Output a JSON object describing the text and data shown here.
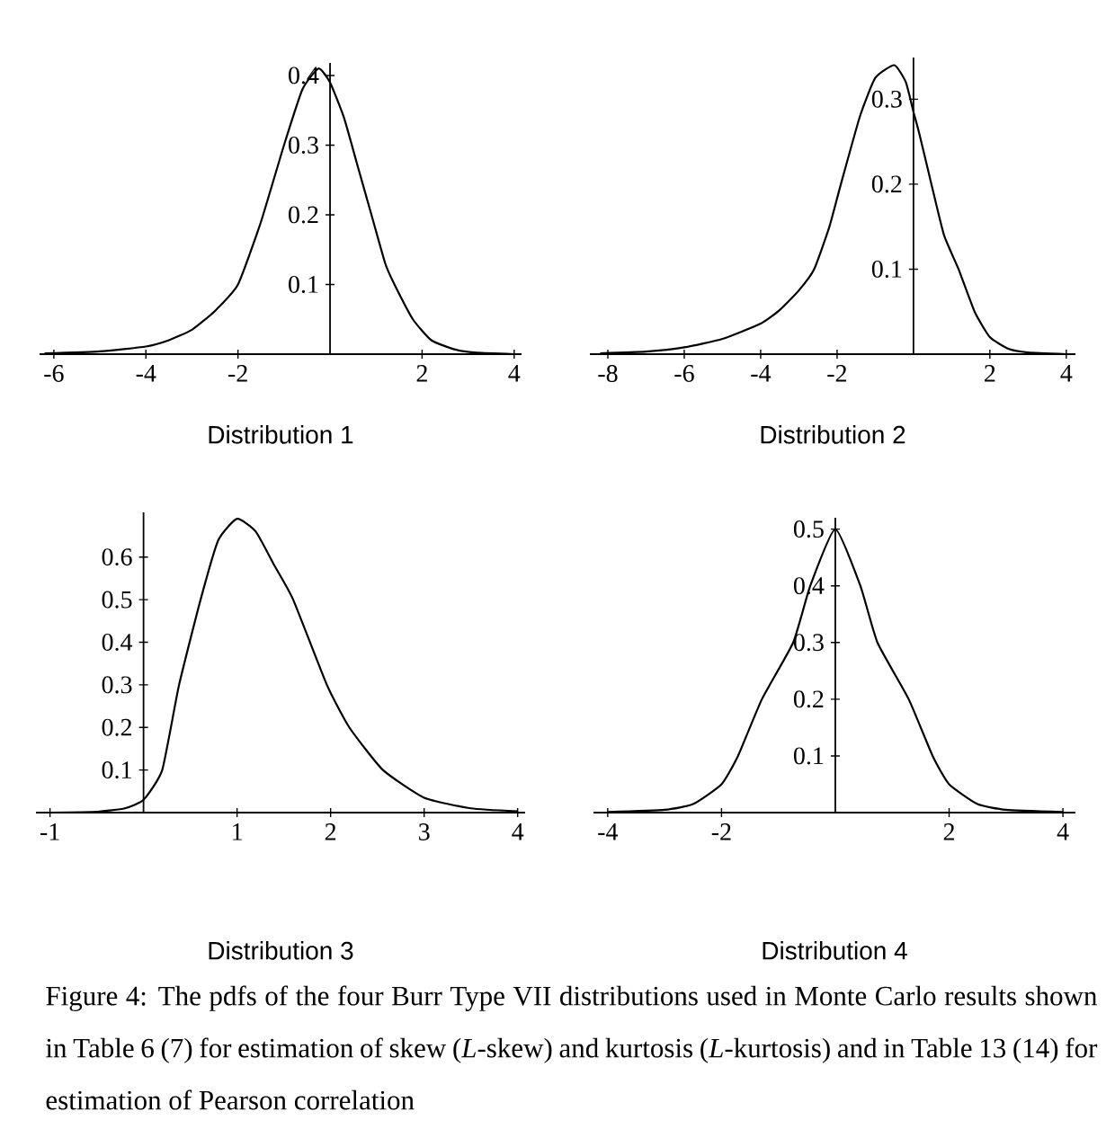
{
  "chart_data": [
    {
      "type": "line",
      "xlabel": "Distribution 1",
      "xlim": [
        -6.31,
        4.16
      ],
      "ylim": [
        0,
        0.418
      ],
      "xticks": [
        -6,
        -4,
        -2,
        2,
        4
      ],
      "yticks": [
        0.1,
        0.2,
        0.3,
        0.4
      ],
      "marker": "none",
      "line_style": "solid",
      "series": [
        {
          "color": "#000000",
          "x": [
            -6.2,
            -5,
            -4,
            -3.5,
            -3,
            -2.5,
            -2,
            -1.5,
            -1,
            -0.6,
            -0.25,
            0,
            0.3,
            0.6,
            0.9,
            1.2,
            1.4,
            1.8,
            2.2,
            2.7,
            3.2,
            4
          ],
          "values": [
            0.001,
            0.004,
            0.011,
            0.02,
            0.035,
            0.062,
            0.1,
            0.19,
            0.3,
            0.38,
            0.41,
            0.39,
            0.34,
            0.27,
            0.2,
            0.13,
            0.1,
            0.05,
            0.02,
            0.007,
            0.002,
            0
          ]
        }
      ]
    },
    {
      "type": "line",
      "xlabel": "Distribution 2",
      "xlim": [
        -8.47,
        4.24
      ],
      "ylim": [
        0,
        0.349
      ],
      "xticks": [
        -8,
        -6,
        -4,
        -2,
        2,
        4
      ],
      "yticks": [
        0.1,
        0.2,
        0.3
      ],
      "marker": "none",
      "line_style": "solid",
      "series": [
        {
          "color": "#000000",
          "x": [
            -8.2,
            -7,
            -6,
            -5,
            -4,
            -3.5,
            -3,
            -2.6,
            -2.2,
            -1.9,
            -1.4,
            -1,
            -0.5,
            -0.2,
            0,
            0.15,
            0.47,
            0.8,
            1.18,
            1.6,
            2,
            2.5,
            3,
            4
          ],
          "values": [
            0.001,
            0.003,
            0.008,
            0.018,
            0.036,
            0.052,
            0.075,
            0.1,
            0.15,
            0.2,
            0.28,
            0.325,
            0.34,
            0.32,
            0.285,
            0.26,
            0.2,
            0.14,
            0.1,
            0.05,
            0.02,
            0.006,
            0.002,
            0
          ]
        }
      ]
    },
    {
      "type": "line",
      "xlabel": "Distribution 3",
      "xlim": [
        -1.15,
        4.08
      ],
      "ylim": [
        0,
        0.705
      ],
      "xticks": [
        -1,
        1,
        2,
        3,
        4
      ],
      "yticks": [
        0.1,
        0.2,
        0.3,
        0.4,
        0.5,
        0.6
      ],
      "marker": "none",
      "line_style": "solid",
      "series": [
        {
          "color": "#000000",
          "x": [
            -1,
            -0.5,
            -0.2,
            0,
            0.2,
            0.38,
            0.61,
            0.8,
            1,
            1.2,
            1.4,
            1.6,
            1.96,
            2.2,
            2.56,
            3,
            3.5,
            4
          ],
          "values": [
            0,
            0.002,
            0.01,
            0.03,
            0.1,
            0.3,
            0.5,
            0.64,
            0.69,
            0.66,
            0.58,
            0.5,
            0.3,
            0.2,
            0.1,
            0.035,
            0.01,
            0.003
          ]
        }
      ]
    },
    {
      "type": "line",
      "xlabel": "Distribution 4",
      "xlim": [
        -4.25,
        4.22
      ],
      "ylim": [
        0,
        0.52
      ],
      "xticks": [
        -4,
        -2,
        2,
        4
      ],
      "yticks": [
        0.1,
        0.2,
        0.3,
        0.4,
        0.5
      ],
      "marker": "none",
      "line_style": "solid",
      "annotations": [
        "Figure 4: The pdfs of the four Burr Type VII distributions used in Monte Carlo results shown in Table 6 (7) for estimation of skew (*L*-skew) and kurtosis (*L*-kurtosis) and in Table 13 (14) for estimation of Pearson correlation"
      ],
      "series": [
        {
          "color": "#000000",
          "x": [
            -4,
            -3,
            -2.5,
            -2,
            -1.71,
            -1.29,
            -0.74,
            -0.44,
            0,
            0.44,
            0.74,
            1.29,
            1.71,
            2,
            2.5,
            3,
            4
          ],
          "values": [
            0.001,
            0.005,
            0.015,
            0.05,
            0.1,
            0.2,
            0.3,
            0.4,
            0.5,
            0.4,
            0.3,
            0.2,
            0.1,
            0.05,
            0.015,
            0.005,
            0.001
          ]
        }
      ]
    }
  ]
}
